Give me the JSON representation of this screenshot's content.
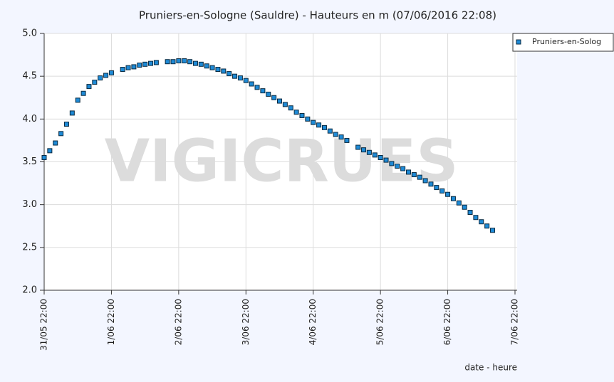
{
  "chart_data": {
    "type": "scatter",
    "title": "Pruniers-en-Sologne (Sauldre) - Hauteurs en m (07/06/2016 22:08)",
    "xlabel": "date - heure",
    "watermark": "VIGICRUES",
    "legend": "upper right",
    "grid": true,
    "series": [
      {
        "name": "Pruniers-en-Solog",
        "color": "#1e8ad6",
        "x": [
          "31/05 22:00",
          "1/06 00:00",
          "1/06 02:00",
          "1/06 04:00",
          "1/06 06:00",
          "1/06 08:00",
          "1/06 10:00",
          "1/06 12:00",
          "1/06 14:00",
          "1/06 16:00",
          "1/06 18:00",
          "1/06 20:00",
          "1/06 22:00",
          "2/06 02:00",
          "2/06 04:00",
          "2/06 06:00",
          "2/06 08:00",
          "2/06 10:00",
          "2/06 12:00",
          "2/06 14:00",
          "2/06 18:00",
          "2/06 20:00",
          "2/06 22:00",
          "3/06 00:00",
          "3/06 02:00",
          "3/06 04:00",
          "3/06 06:00",
          "3/06 08:00",
          "3/06 10:00",
          "3/06 12:00",
          "3/06 14:00",
          "3/06 16:00",
          "3/06 18:00",
          "3/06 20:00",
          "3/06 22:00",
          "4/06 00:00",
          "4/06 02:00",
          "4/06 04:00",
          "4/06 06:00",
          "4/06 08:00",
          "4/06 10:00",
          "4/06 12:00",
          "4/06 14:00",
          "4/06 16:00",
          "4/06 18:00",
          "4/06 20:00",
          "4/06 22:00",
          "5/06 00:00",
          "5/06 02:00",
          "5/06 04:00",
          "5/06 06:00",
          "5/06 08:00",
          "5/06 10:00",
          "5/06 14:00",
          "5/06 16:00",
          "5/06 18:00",
          "5/06 20:00",
          "5/06 22:00",
          "6/06 00:00",
          "6/06 02:00",
          "6/06 04:00",
          "6/06 06:00",
          "6/06 08:00",
          "6/06 10:00",
          "6/06 12:00",
          "6/06 14:00",
          "6/06 16:00",
          "6/06 18:00",
          "6/06 20:00",
          "6/06 22:00",
          "7/06 00:00",
          "7/06 02:00",
          "7/06 04:00",
          "7/06 06:00",
          "7/06 08:00",
          "7/06 10:00",
          "7/06 12:00",
          "7/06 14:00"
        ],
        "values": [
          3.55,
          3.63,
          3.72,
          3.83,
          3.94,
          4.07,
          4.22,
          4.3,
          4.38,
          4.43,
          4.48,
          4.51,
          4.54,
          4.58,
          4.6,
          4.61,
          4.63,
          4.64,
          4.65,
          4.66,
          4.67,
          4.67,
          4.68,
          4.68,
          4.67,
          4.65,
          4.64,
          4.62,
          4.6,
          4.58,
          4.56,
          4.53,
          4.5,
          4.48,
          4.45,
          4.41,
          4.37,
          4.33,
          4.29,
          4.25,
          4.21,
          4.17,
          4.13,
          4.08,
          4.04,
          4.0,
          3.96,
          3.93,
          3.9,
          3.86,
          3.82,
          3.79,
          3.75,
          3.67,
          3.64,
          3.61,
          3.58,
          3.55,
          3.52,
          3.48,
          3.45,
          3.42,
          3.38,
          3.35,
          3.32,
          3.28,
          3.24,
          3.2,
          3.16,
          3.12,
          3.07,
          3.02,
          2.97,
          2.91,
          2.85,
          2.8,
          2.75,
          2.7
        ]
      }
    ],
    "xlim": [
      "31/05 22:00",
      "7/06 22:00"
    ],
    "xticks": [
      "31/05 22:00",
      "1/06 22:00",
      "2/06 22:00",
      "3/06 22:00",
      "4/06 22:00",
      "5/06 22:00",
      "6/06 22:00",
      "7/06 22:00"
    ],
    "ylim": [
      2,
      5
    ],
    "yticks": [
      {
        "value": 2,
        "label": "2.0"
      },
      {
        "value": 2.5,
        "label": "2.5"
      },
      {
        "value": 3,
        "label": "3.0"
      },
      {
        "value": 3.5,
        "label": "3.5"
      },
      {
        "value": 4,
        "label": "4.0"
      },
      {
        "value": 4.5,
        "label": "4.5"
      },
      {
        "value": 5,
        "label": "5.0"
      }
    ]
  }
}
